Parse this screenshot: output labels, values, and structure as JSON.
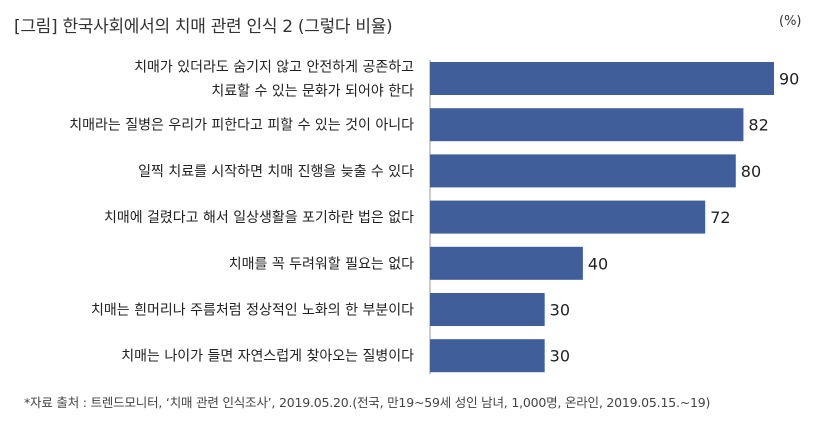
{
  "title": "[그림] 한국사회에서의 치매 관련 인식 2 (그렇다 비율)",
  "unit": "(%)",
  "source": "*자료 출처 : 트렌드모니터, ‘치매 관련 인식조사’, 2019.05.20.(전국, 만19~59세 성인 남녀, 1,000명, 온라인, 2019.05.15.~19)",
  "colors": {
    "bar": "#3f5e9a"
  },
  "chart_data": {
    "type": "bar",
    "orientation": "horizontal",
    "categories": [
      [
        "치매가 있더라도 숨기지 않고 안전하게 공존하고",
        "치료할 수 있는 문화가 되어야 한다"
      ],
      [
        "치매라는 질병은 우리가 피한다고 피할 수 있는 것이 아니다"
      ],
      [
        "일찍 치료를 시작하면 치매 진행을 늦출 수 있다"
      ],
      [
        "치매에 걸렸다고 해서 일상생활을 포기하란 법은 없다"
      ],
      [
        "치매를 꼭 두려워할 필요는 없다"
      ],
      [
        "치매는 흰머리나 주름처럼 정상적인 노화의 한 부분이다"
      ],
      [
        "치매는 나이가 들면 자연스럽게 찾아오는 질병이다"
      ]
    ],
    "values": [
      90,
      82,
      80,
      72,
      40,
      30,
      30
    ],
    "xlim": [
      0,
      90
    ],
    "grid": false,
    "legend": "none"
  }
}
